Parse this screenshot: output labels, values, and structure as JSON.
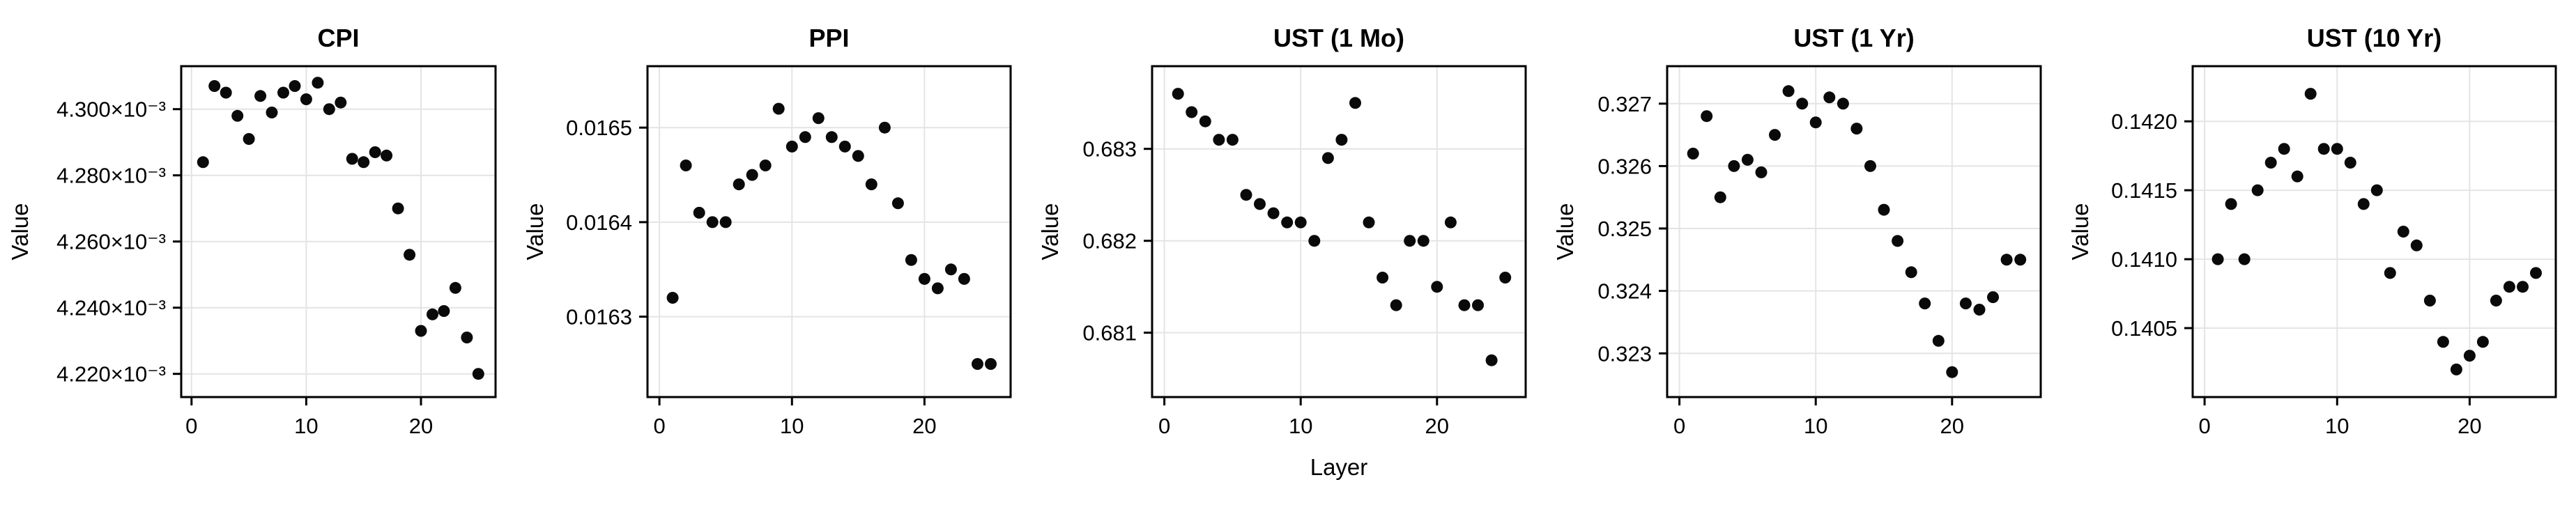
{
  "page": {
    "background": "#ffffff",
    "text_color": "#000000"
  },
  "chart_data": [
    {
      "type": "scatter",
      "title": "CPI",
      "xlabel": "",
      "ylabel": "Value",
      "x": [
        1,
        2,
        3,
        4,
        5,
        6,
        7,
        8,
        9,
        10,
        11,
        12,
        13,
        14,
        15,
        16,
        17,
        18,
        19,
        20,
        21,
        22,
        23,
        24,
        25
      ],
      "y": [
        0.004284,
        0.004307,
        0.004305,
        0.004298,
        0.004291,
        0.004304,
        0.004299,
        0.004305,
        0.004307,
        0.004303,
        0.004308,
        0.0043,
        0.004302,
        0.004285,
        0.004284,
        0.004287,
        0.004286,
        0.00427,
        0.004256,
        0.004233,
        0.004238,
        0.004239,
        0.004246,
        0.004231,
        0.00422
      ],
      "xlim": [
        -0.9,
        26.5
      ],
      "ylim": [
        0.004213,
        0.004313
      ],
      "xticks": [
        0,
        10,
        20
      ],
      "xtick_labels": [
        "0",
        "10",
        "20"
      ],
      "yticks": [
        0.00422,
        0.00424,
        0.00426,
        0.00428,
        0.0043
      ],
      "ytick_labels": [
        "4.220×10⁻³",
        "4.240×10⁻³",
        "4.260×10⁻³",
        "4.280×10⁻³",
        "4.300×10⁻³"
      ],
      "grid": true,
      "grid_color": "#e4e4e4",
      "frame_color": "#000000",
      "marker_color": "#0a0a0a",
      "layout": {
        "margin_left": 260
      }
    },
    {
      "type": "scatter",
      "title": "PPI",
      "xlabel": "",
      "ylabel": "Value",
      "x": [
        1,
        2,
        3,
        4,
        5,
        6,
        7,
        8,
        9,
        10,
        11,
        12,
        13,
        14,
        15,
        16,
        17,
        18,
        19,
        20,
        21,
        22,
        23,
        24,
        25
      ],
      "y": [
        0.01632,
        0.01646,
        0.01641,
        0.0164,
        0.0164,
        0.01644,
        0.01645,
        0.01646,
        0.01652,
        0.01648,
        0.01649,
        0.01651,
        0.01649,
        0.01648,
        0.01647,
        0.01644,
        0.0165,
        0.01642,
        0.01636,
        0.01634,
        0.01633,
        0.01635,
        0.01634,
        0.01625,
        0.01625
      ],
      "xlim": [
        -0.9,
        26.5
      ],
      "ylim": [
        0.016215,
        0.016565
      ],
      "xticks": [
        0,
        10,
        20
      ],
      "xtick_labels": [
        "0",
        "10",
        "20"
      ],
      "yticks": [
        0.0163,
        0.0164,
        0.0165
      ],
      "ytick_labels": [
        "0.0163",
        "0.0164",
        "0.0165"
      ],
      "grid": true,
      "grid_color": "#e4e4e4",
      "frame_color": "#000000",
      "marker_color": "#0a0a0a",
      "layout": {
        "margin_left": 190
      }
    },
    {
      "type": "scatter",
      "title": "UST (1 Mo)",
      "xlabel": "Layer",
      "ylabel": "Value",
      "x": [
        1,
        2,
        3,
        4,
        5,
        6,
        7,
        8,
        9,
        10,
        11,
        12,
        13,
        14,
        15,
        16,
        17,
        18,
        19,
        20,
        21,
        22,
        23,
        24,
        25
      ],
      "y": [
        0.6836,
        0.6834,
        0.6833,
        0.6831,
        0.6831,
        0.6825,
        0.6824,
        0.6823,
        0.6822,
        0.6822,
        0.682,
        0.6829,
        0.6831,
        0.6835,
        0.6822,
        0.6816,
        0.6813,
        0.682,
        0.682,
        0.6815,
        0.6822,
        0.6813,
        0.6813,
        0.6807,
        0.6816
      ],
      "xlim": [
        -0.9,
        26.5
      ],
      "ylim": [
        0.6803,
        0.6839
      ],
      "xticks": [
        0,
        10,
        20
      ],
      "xtick_labels": [
        "0",
        "10",
        "20"
      ],
      "yticks": [
        0.681,
        0.682,
        0.683
      ],
      "ytick_labels": [
        "0.681",
        "0.682",
        "0.683"
      ],
      "grid": true,
      "grid_color": "#e4e4e4",
      "frame_color": "#000000",
      "marker_color": "#0a0a0a",
      "layout": {
        "margin_left": 175
      }
    },
    {
      "type": "scatter",
      "title": "UST (1 Yr)",
      "xlabel": "",
      "ylabel": "Value",
      "x": [
        1,
        2,
        3,
        4,
        5,
        6,
        7,
        8,
        9,
        10,
        11,
        12,
        13,
        14,
        15,
        16,
        17,
        18,
        19,
        20,
        21,
        22,
        23,
        24,
        25
      ],
      "y": [
        0.3262,
        0.3268,
        0.3255,
        0.326,
        0.3261,
        0.3259,
        0.3265,
        0.3272,
        0.327,
        0.3267,
        0.3271,
        0.327,
        0.3266,
        0.326,
        0.3253,
        0.3248,
        0.3243,
        0.3238,
        0.3232,
        0.3227,
        0.3238,
        0.3237,
        0.3239,
        0.3245,
        0.3245
      ],
      "xlim": [
        -0.9,
        26.5
      ],
      "ylim": [
        0.3223,
        0.3276
      ],
      "xticks": [
        0,
        10,
        20
      ],
      "xtick_labels": [
        "0",
        "10",
        "20"
      ],
      "yticks": [
        0.323,
        0.324,
        0.325,
        0.326,
        0.327
      ],
      "ytick_labels": [
        "0.323",
        "0.324",
        "0.325",
        "0.326",
        "0.327"
      ],
      "grid": true,
      "grid_color": "#e4e4e4",
      "frame_color": "#000000",
      "marker_color": "#0a0a0a",
      "layout": {
        "margin_left": 175
      }
    },
    {
      "type": "scatter",
      "title": "UST (10 Yr)",
      "xlabel": "",
      "ylabel": "Value",
      "x": [
        1,
        2,
        3,
        4,
        5,
        6,
        7,
        8,
        9,
        10,
        11,
        12,
        13,
        14,
        15,
        16,
        17,
        18,
        19,
        20,
        21,
        22,
        23,
        24,
        25
      ],
      "y": [
        0.141,
        0.1414,
        0.141,
        0.1415,
        0.1417,
        0.1418,
        0.1416,
        0.1422,
        0.1418,
        0.1418,
        0.1417,
        0.1414,
        0.1415,
        0.1409,
        0.1412,
        0.1411,
        0.1407,
        0.1404,
        0.1402,
        0.1403,
        0.1404,
        0.1407,
        0.1408,
        0.1408,
        0.1409
      ],
      "xlim": [
        -0.9,
        26.5
      ],
      "ylim": [
        0.14,
        0.1424
      ],
      "xticks": [
        0,
        10,
        20
      ],
      "xtick_labels": [
        "0",
        "10",
        "20"
      ],
      "yticks": [
        0.1405,
        0.141,
        0.1415,
        0.142
      ],
      "ytick_labels": [
        "0.1405",
        "0.1410",
        "0.1415",
        "0.1420"
      ],
      "grid": true,
      "grid_color": "#e4e4e4",
      "frame_color": "#000000",
      "marker_color": "#0a0a0a",
      "layout": {
        "margin_left": 190
      }
    }
  ]
}
